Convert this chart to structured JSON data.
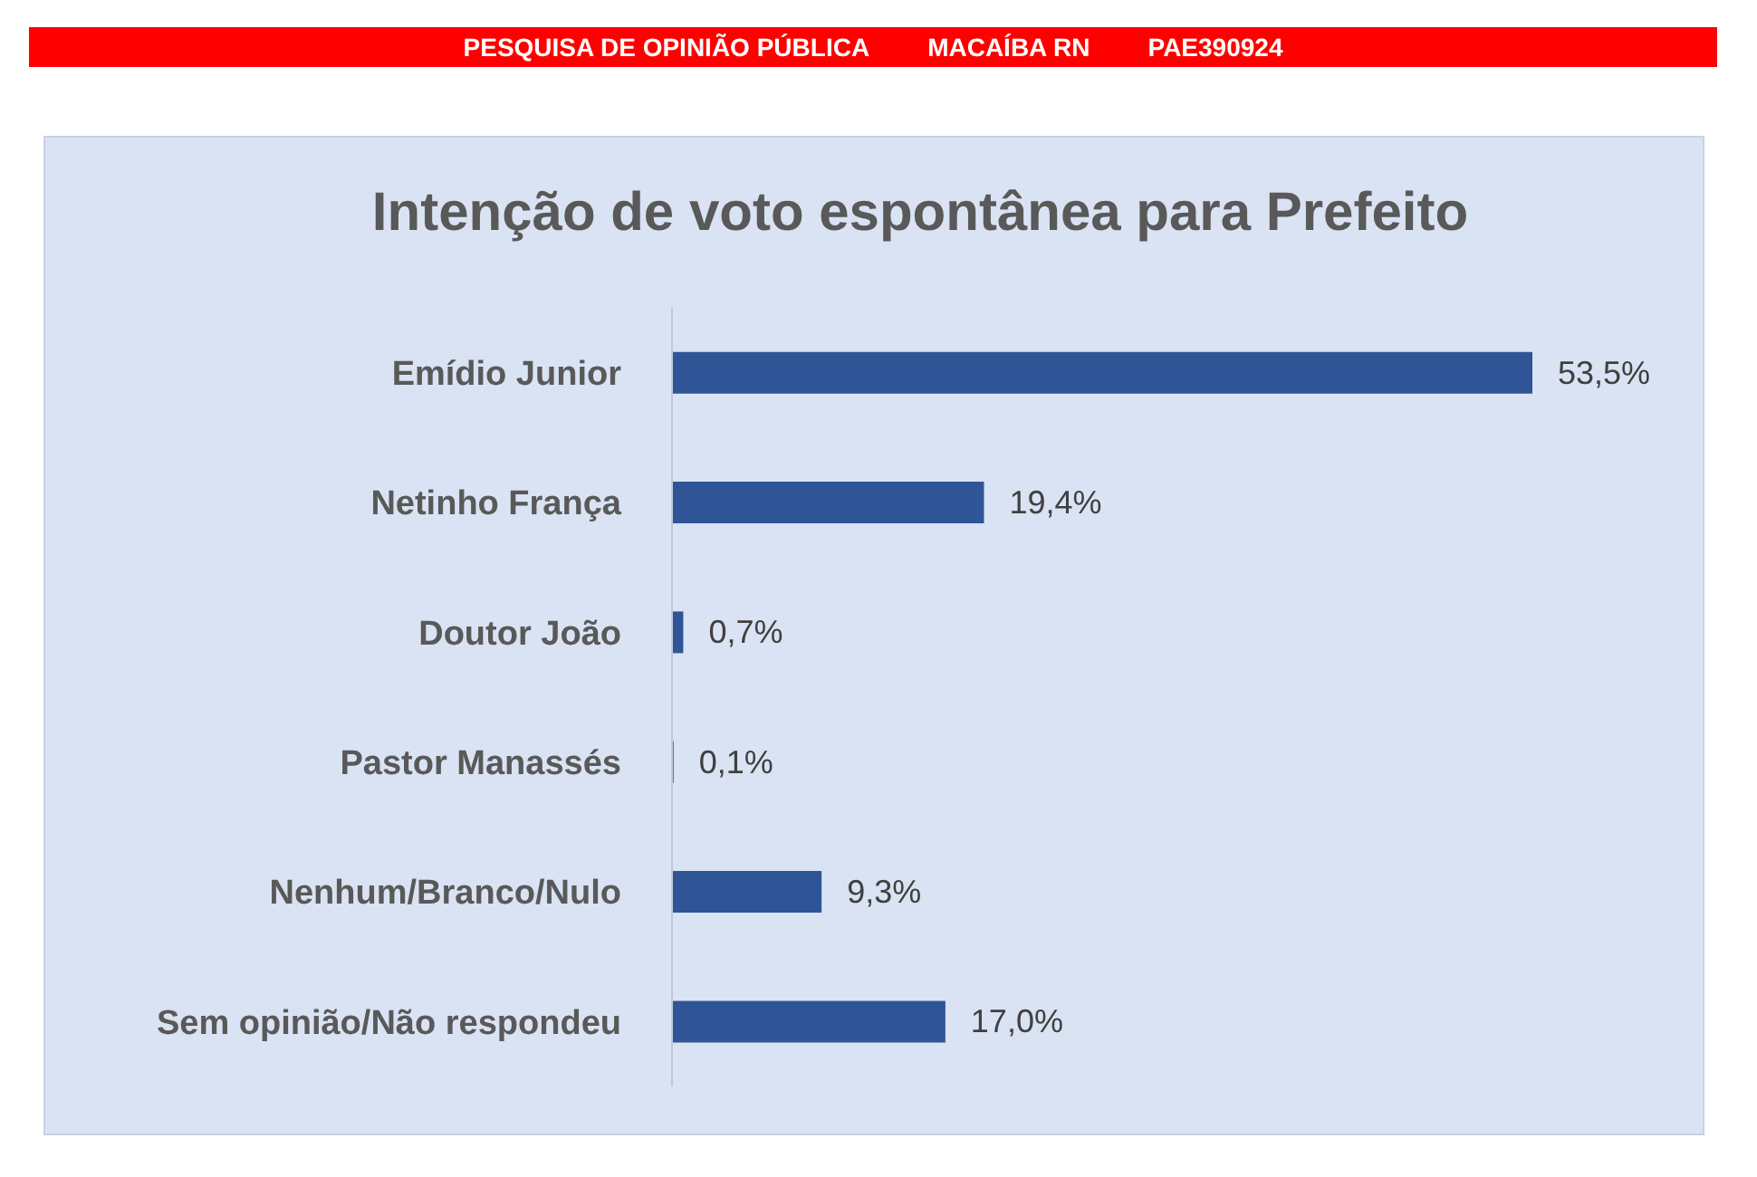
{
  "chart_data": {
    "type": "bar",
    "orientation": "horizontal",
    "title": "Intenção de voto espontânea para Prefeito",
    "annotations": [
      "PESQUISA DE OPINIÃO PÚBLICA",
      "MACAÍBA RN",
      "PAE390924"
    ],
    "categories": [
      "Emídio Junior",
      "Netinho França",
      "Doutor João",
      "Pastor Manassés",
      "Nenhum/Branco/Nulo",
      "Sem opinião/Não respondeu"
    ],
    "values": [
      53.5,
      19.4,
      0.7,
      0.1,
      9.3,
      17.0
    ],
    "value_labels": [
      "53,5%",
      "19,4%",
      "0,7%",
      "0,1%",
      "9,3%",
      "17,0%"
    ],
    "color": "#2f5597",
    "grid": false,
    "legend": false
  }
}
